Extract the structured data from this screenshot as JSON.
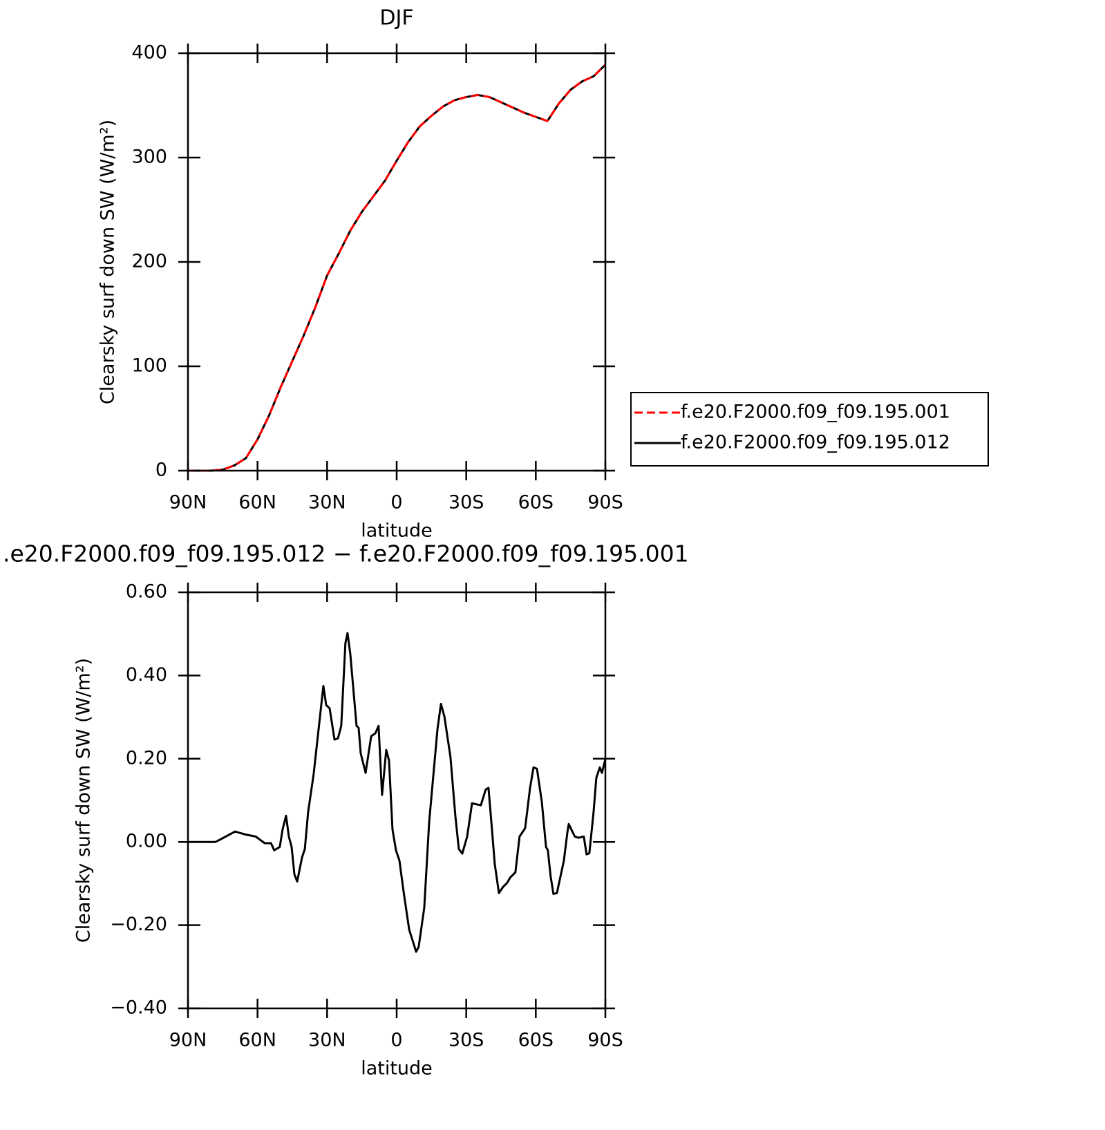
{
  "chart_data": [
    {
      "type": "line",
      "title": "DJF",
      "xlabel": "latitude",
      "ylabel": "Clearsky surf down SW (W/m²)",
      "x": [
        90,
        85,
        80,
        75,
        70,
        65,
        60,
        55,
        50,
        45,
        40,
        35,
        30,
        25,
        20,
        15,
        10,
        5,
        0,
        -5,
        -10,
        -15,
        -20,
        -25,
        -30,
        -35,
        -40,
        -45,
        -50,
        -55,
        -60,
        -65,
        -70,
        -75,
        -80,
        -85,
        -90
      ],
      "series": [
        {
          "name": "f.e20.F2000.f09_f09.195.001",
          "color": "#ff0000",
          "line_style": "dashed",
          "values": [
            0,
            0,
            0,
            1,
            5,
            12,
            30,
            53,
            80,
            105,
            130,
            157,
            187,
            208,
            230,
            248,
            263,
            278,
            297,
            315,
            330,
            340,
            349,
            355,
            358,
            360,
            358,
            353,
            348,
            343,
            339,
            335,
            352,
            365,
            373,
            378,
            389
          ]
        },
        {
          "name": "f.e20.F2000.f09_f09.195.012",
          "color": "#000000",
          "line_style": "solid",
          "values": [
            0,
            0,
            0,
            1,
            5,
            12,
            30,
            53,
            80,
            105,
            130,
            157,
            187,
            208,
            230,
            248,
            263,
            278,
            297,
            315,
            330,
            340,
            349,
            355,
            358,
            360,
            358,
            353,
            348,
            343,
            339,
            335,
            352,
            365,
            373,
            378,
            389
          ]
        }
      ],
      "xlim": [
        90,
        -90
      ],
      "xticks": [
        {
          "value": 90,
          "label": "90N"
        },
        {
          "value": 60,
          "label": "60N"
        },
        {
          "value": 30,
          "label": "30N"
        },
        0,
        {
          "value": -30,
          "label": "30S"
        },
        {
          "value": -60,
          "label": "60S"
        },
        {
          "value": -90,
          "label": "90S"
        }
      ],
      "ylim": [
        0,
        400
      ],
      "yticks": [
        0,
        100,
        200,
        300,
        400
      ],
      "legend": "right"
    },
    {
      "type": "line",
      "title": ".e20.F2000.f09_f09.195.012 − f.e20.F2000.f09_f09.195.001",
      "xlabel": "latitude",
      "ylabel": "Clearsky surf down SW (W/m²)",
      "x": [
        90,
        78.1,
        75.7,
        69.7,
        65.3,
        60.8,
        56.9,
        54.2,
        52.8,
        50.4,
        49.2,
        47.7,
        46.5,
        45.3,
        44.1,
        42.9,
        40.8,
        39.6,
        38.2,
        35.8,
        32.2,
        31.6,
        30.4,
        28.9,
        26.8,
        25.3,
        23.9,
        22.1,
        21.2,
        20.0,
        17.3,
        16.4,
        15.5,
        13.4,
        11.0,
        9.2,
        7.8,
        6.3,
        4.5,
        3.3,
        1.8,
        0.3,
        -1.2,
        -3.0,
        -5.4,
        -8.4,
        -9.5,
        -11.9,
        -14.0,
        -17.6,
        -19.1,
        -20.6,
        -23.2,
        -25.3,
        -26.8,
        -28.3,
        -30.4,
        -32.5,
        -34.0,
        -36.3,
        -38.4,
        -39.6,
        -41.1,
        -42.3,
        -44.1,
        -45.9,
        -47.7,
        -48.9,
        -51.2,
        -53.0,
        -55.4,
        -57.5,
        -59.0,
        -60.5,
        -62.6,
        -64.4,
        -65.2,
        -66.4,
        -67.6,
        -69.1,
        -72.1,
        -73.6,
        -74.2,
        -76.8,
        -78.4,
        -80.7,
        -81.9,
        -83.1,
        -84.9,
        -86.1,
        -87.6,
        -88.5,
        -90
      ],
      "values": [
        0,
        0,
        0.007,
        0.025,
        0.018,
        0.013,
        -0.003,
        -0.003,
        -0.02,
        -0.012,
        0.03,
        0.063,
        0.013,
        -0.012,
        -0.078,
        -0.095,
        -0.037,
        -0.017,
        0.071,
        0.163,
        0.345,
        0.375,
        0.329,
        0.321,
        0.246,
        0.249,
        0.279,
        0.478,
        0.502,
        0.452,
        0.279,
        0.274,
        0.213,
        0.166,
        0.254,
        0.261,
        0.279,
        0.113,
        0.221,
        0.196,
        0.03,
        -0.02,
        -0.045,
        -0.12,
        -0.211,
        -0.264,
        -0.252,
        -0.158,
        0.047,
        0.271,
        0.332,
        0.301,
        0.204,
        0.063,
        -0.017,
        -0.028,
        0.013,
        0.093,
        0.091,
        0.088,
        0.126,
        0.13,
        0.03,
        -0.053,
        -0.123,
        -0.108,
        -0.098,
        -0.086,
        -0.073,
        0.013,
        0.033,
        0.129,
        0.179,
        0.176,
        0.096,
        -0.012,
        -0.02,
        -0.083,
        -0.125,
        -0.123,
        -0.045,
        0.022,
        0.043,
        0.013,
        0.01,
        0.013,
        -0.03,
        -0.027,
        0.071,
        0.154,
        0.179,
        0.166,
        0.199
      ],
      "color": "#000000",
      "xlim": [
        90,
        -90
      ],
      "xticks": [
        {
          "value": 90,
          "label": "90N"
        },
        {
          "value": 60,
          "label": "60N"
        },
        {
          "value": 30,
          "label": "30N"
        },
        0,
        {
          "value": -30,
          "label": "30S"
        },
        {
          "value": -60,
          "label": "60S"
        },
        {
          "value": -90,
          "label": "90S"
        }
      ],
      "ylim": [
        -0.4,
        0.6
      ],
      "yticks": [
        {
          "value": -0.4,
          "label": "−0.40"
        },
        {
          "value": -0.2,
          "label": "−0.20"
        },
        {
          "value": 0,
          "label": "0.00"
        },
        {
          "value": 0.2,
          "label": "0.20"
        },
        {
          "value": 0.4,
          "label": "0.40"
        },
        {
          "value": 0.6,
          "label": "0.60"
        }
      ]
    }
  ]
}
